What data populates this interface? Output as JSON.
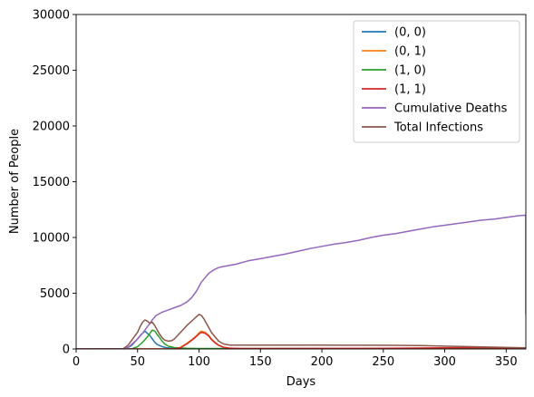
{
  "chart_data": {
    "type": "line",
    "title": "",
    "xlabel": "Days",
    "ylabel": "Number of People",
    "xlim": [
      0,
      366
    ],
    "ylim": [
      0,
      30000
    ],
    "x_ticks": [
      0,
      50,
      100,
      150,
      200,
      250,
      300,
      350
    ],
    "y_ticks": [
      0,
      5000,
      10000,
      15000,
      20000,
      25000,
      30000
    ],
    "grid": false,
    "legend_position": "top-right",
    "series": [
      {
        "name": "(0, 0)",
        "color": "#1f77b4",
        "x": [
          0,
          40,
          45,
          50,
          53,
          56,
          58,
          60,
          62,
          64,
          66,
          68,
          70,
          74,
          80,
          90,
          100,
          366
        ],
        "y": [
          0,
          20,
          300,
          900,
          1300,
          1600,
          1400,
          1200,
          900,
          600,
          400,
          300,
          200,
          100,
          40,
          10,
          0,
          0
        ]
      },
      {
        "name": "(0, 1)",
        "color": "#ff7f0e",
        "x": [
          0,
          80,
          85,
          90,
          95,
          98,
          100,
          102,
          105,
          108,
          110,
          113,
          116,
          120,
          125,
          135,
          150,
          200,
          250,
          300,
          366
        ],
        "y": [
          0,
          0,
          150,
          500,
          900,
          1200,
          1450,
          1600,
          1500,
          1200,
          900,
          600,
          350,
          150,
          60,
          20,
          10,
          5,
          5,
          5,
          5
        ]
      },
      {
        "name": "(1, 0)",
        "color": "#2ca02c",
        "x": [
          0,
          45,
          50,
          55,
          58,
          60,
          62,
          64,
          66,
          68,
          70,
          72,
          75,
          80,
          90,
          100,
          366
        ],
        "y": [
          0,
          0,
          200,
          700,
          1100,
          1400,
          1700,
          1600,
          1300,
          1000,
          700,
          450,
          250,
          120,
          60,
          40,
          40
        ]
      },
      {
        "name": "(1, 1)",
        "color": "#d62728",
        "x": [
          0,
          80,
          85,
          90,
          95,
          98,
          100,
          102,
          105,
          108,
          110,
          113,
          116,
          120,
          125,
          135,
          150,
          200,
          250,
          300,
          330,
          366
        ],
        "y": [
          0,
          0,
          120,
          450,
          850,
          1150,
          1350,
          1500,
          1400,
          1150,
          850,
          550,
          320,
          150,
          70,
          40,
          40,
          50,
          60,
          100,
          120,
          50
        ]
      },
      {
        "name": "Cumulative Deaths",
        "color": "#9467bd",
        "x": [
          0,
          38,
          42,
          46,
          50,
          54,
          58,
          60,
          62,
          65,
          70,
          75,
          80,
          85,
          90,
          94,
          98,
          100,
          102,
          105,
          108,
          112,
          116,
          120,
          125,
          130,
          140,
          150,
          160,
          170,
          180,
          190,
          200,
          210,
          220,
          230,
          240,
          250,
          260,
          270,
          280,
          290,
          300,
          310,
          320,
          330,
          340,
          350,
          360,
          366,
          366
        ],
        "y": [
          0,
          0,
          100,
          500,
          900,
          1400,
          2000,
          2300,
          2600,
          3000,
          3300,
          3500,
          3700,
          3900,
          4200,
          4600,
          5200,
          5600,
          6000,
          6400,
          6800,
          7100,
          7300,
          7400,
          7500,
          7600,
          7900,
          8100,
          8300,
          8500,
          8750,
          9000,
          9200,
          9400,
          9550,
          9750,
          10000,
          10200,
          10350,
          10550,
          10750,
          10950,
          11100,
          11250,
          11400,
          11550,
          11650,
          11800,
          11950,
          12000,
          3100
        ]
      },
      {
        "name": "Total Infections",
        "color": "#8c564b",
        "x": [
          0,
          38,
          42,
          46,
          50,
          52,
          54,
          56,
          58,
          60,
          62,
          64,
          66,
          68,
          70,
          72,
          75,
          78,
          80,
          85,
          90,
          95,
          98,
          100,
          102,
          104,
          106,
          108,
          110,
          113,
          116,
          120,
          125,
          130,
          140,
          150,
          200,
          250,
          270,
          280,
          300,
          330,
          366
        ],
        "y": [
          0,
          0,
          300,
          900,
          1500,
          2000,
          2400,
          2600,
          2500,
          2300,
          2400,
          2100,
          1700,
          1300,
          1000,
          800,
          700,
          750,
          900,
          1500,
          2100,
          2600,
          2900,
          3100,
          3000,
          2700,
          2300,
          1900,
          1500,
          1100,
          700,
          450,
          350,
          350,
          350,
          350,
          340,
          330,
          320,
          300,
          250,
          180,
          100
        ]
      }
    ]
  }
}
